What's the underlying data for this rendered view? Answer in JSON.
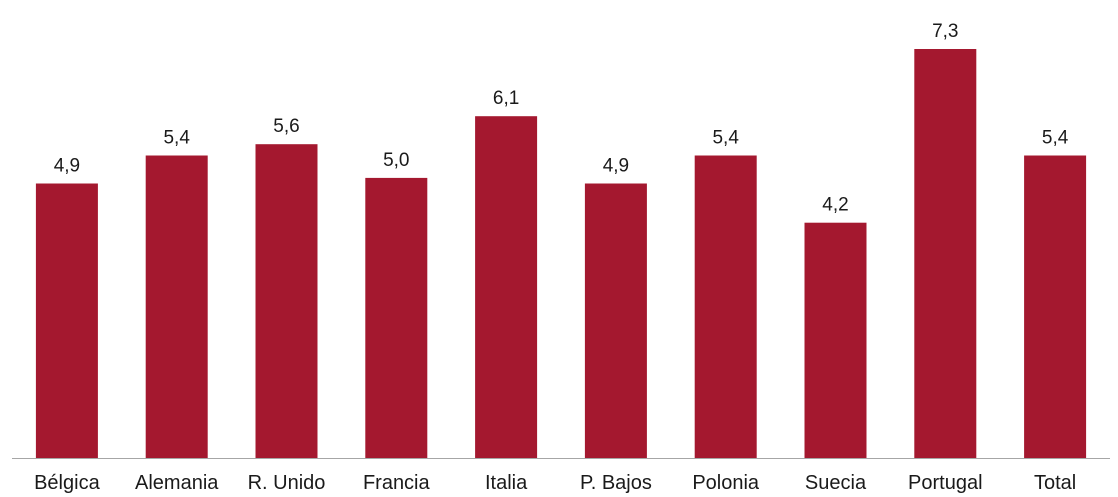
{
  "chart_data": {
    "type": "bar",
    "title": "",
    "xlabel": "",
    "ylabel": "",
    "categories": [
      "Bélgica",
      "Alemania",
      "R. Unido",
      "Francia",
      "Italia",
      "P. Bajos",
      "Polonia",
      "Suecia",
      "Portugal",
      "Total"
    ],
    "values": [
      4.9,
      5.4,
      5.6,
      5.0,
      6.1,
      4.9,
      5.4,
      4.2,
      7.3,
      5.4
    ],
    "value_labels": [
      "4,9",
      "5,4",
      "5,6",
      "5,0",
      "6,1",
      "4,9",
      "5,4",
      "4,2",
      "7,3",
      "5,4"
    ],
    "ylim": [
      0,
      7.3
    ],
    "bar_color": "#a4182f",
    "axis_color": "#a6a6a6",
    "grid": false,
    "legend": "none"
  }
}
